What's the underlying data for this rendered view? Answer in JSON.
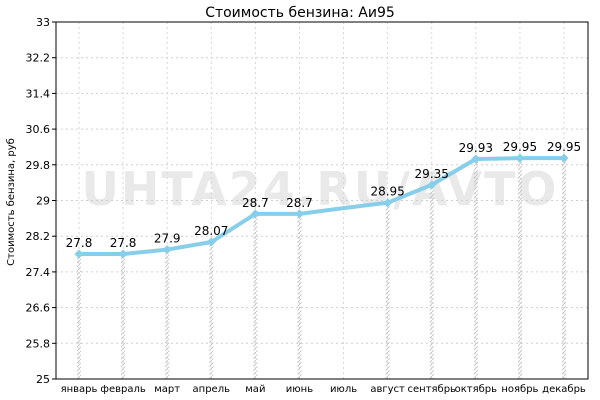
{
  "watermark": "UHTA24.RU/AVTO",
  "chart_data": {
    "type": "line",
    "title": "Стоимость бензина: Аи95",
    "ylabel": "Стоимость бензина, руб",
    "xlabel": "",
    "ylim": [
      25,
      33
    ],
    "yticks": [
      "33",
      "32.2",
      "31.4",
      "30.6",
      "29.8",
      "29",
      "28.2",
      "27.4",
      "26.6",
      "25.8",
      "25"
    ],
    "categories": [
      "январь",
      "февраль",
      "март",
      "апрель",
      "май",
      "июнь",
      "июль",
      "август",
      "сентябрь",
      "октябрь",
      "ноябрь",
      "декабрь"
    ],
    "series": [
      {
        "values": [
          27.8,
          27.8,
          27.9,
          28.07,
          28.7,
          28.7,
          28.83,
          28.95,
          29.35,
          29.93,
          29.95,
          29.95
        ],
        "labels": [
          "27.8",
          "27.8",
          "27.9",
          "28.07",
          "28.7",
          "28.7",
          "",
          "28.95",
          "29.35",
          "29.93",
          "29.95",
          "29.95"
        ],
        "color": "#87ceeb"
      }
    ],
    "grid": true,
    "legend": "none"
  }
}
